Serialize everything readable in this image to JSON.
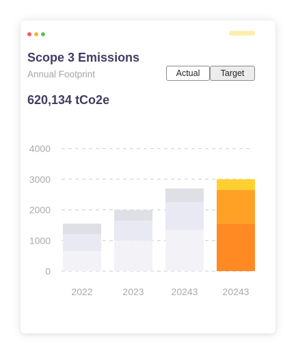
{
  "window": {
    "dot_colors": [
      "#f0605a",
      "#f3b33c",
      "#5bc160"
    ],
    "top_bar_color": "#fdeeb0"
  },
  "header": {
    "title": "Scope 3 Emissions",
    "subtitle": "Annual Footprint"
  },
  "toggles": {
    "actual_label": "Actual",
    "target_label": "Target",
    "selected": "Target"
  },
  "summary": {
    "total": "620,134 tCo2e"
  },
  "chart_data": {
    "type": "bar",
    "stacked": true,
    "categories": [
      "2022",
      "2023",
      "20243",
      "20243"
    ],
    "series": [
      {
        "values": [
          650,
          1000,
          1350,
          1550
        ]
      },
      {
        "values": [
          550,
          650,
          900,
          1100
        ]
      },
      {
        "values": [
          350,
          350,
          450,
          350
        ]
      }
    ],
    "series_colors": [
      [
        "#f3f2f7",
        "#f3f2f7",
        "#f3f2f7",
        "#ff8a24"
      ],
      [
        "#e8e9f2",
        "#e8e9f2",
        "#e8e9f2",
        "#ffa124"
      ],
      [
        "#dfdfe6",
        "#dfdfe6",
        "#dfdfe6",
        "#ffd030"
      ]
    ],
    "y_ticks": [
      0,
      1000,
      2000,
      3000,
      4000
    ],
    "ylim": [
      0,
      4000
    ],
    "grid": true,
    "title": "",
    "xlabel": "",
    "ylabel": ""
  }
}
